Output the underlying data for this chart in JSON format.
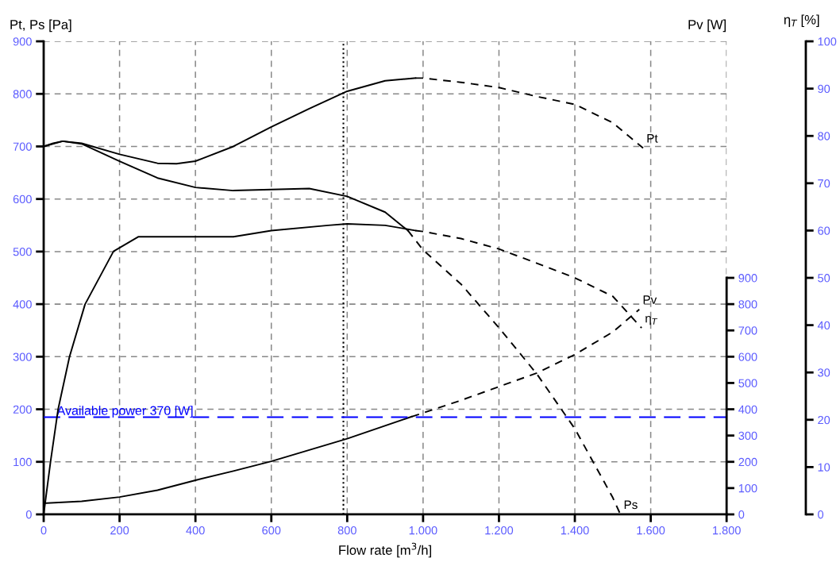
{
  "chart_data": {
    "type": "line",
    "xlabel": "Flow rate [m$^{3}$/h]",
    "ylabel": "Pt, Ps [Pa]",
    "y2label": "Pv [W]",
    "y3label": "η$_{T}$ [%]",
    "xlim": [
      0,
      1800
    ],
    "xticks": [
      0,
      200,
      400,
      600,
      800,
      {
        "value": 1000,
        "label": "1.000"
      },
      {
        "value": 1200,
        "label": "1.200"
      },
      {
        "value": 1400,
        "label": "1.400"
      },
      {
        "value": 1600,
        "label": "1.600"
      },
      {
        "value": 1800,
        "label": "1.800"
      }
    ],
    "ylim": [
      0,
      900
    ],
    "yticks": [
      0,
      100,
      200,
      300,
      400,
      500,
      600,
      700,
      800,
      900
    ],
    "y2lim": [
      0,
      1800
    ],
    "y2ticks": [
      0,
      100,
      200,
      300,
      400,
      500,
      600,
      700,
      800,
      900
    ],
    "y3lim": [
      0,
      100
    ],
    "y3ticks": [
      0,
      10,
      20,
      30,
      40,
      50,
      60,
      70,
      80,
      90,
      100
    ],
    "grid": true,
    "marker": "none",
    "series": [
      {
        "color": "#000000",
        "line_style": "solid",
        "x": [
          0,
          25,
          50,
          100,
          200,
          300,
          350,
          400,
          500,
          600,
          700,
          800,
          900,
          980
        ],
        "values": [
          700,
          706,
          710,
          706,
          685,
          668,
          667,
          672,
          700,
          737,
          772,
          805,
          825,
          830
        ]
      },
      {
        "name": "Pt",
        "color": "#000000",
        "line_style": "dashed",
        "x": [
          980,
          1000,
          1100,
          1200,
          1300,
          1400,
          1500,
          1580
        ],
        "values": [
          830,
          830,
          822,
          812,
          795,
          780,
          745,
          697
        ]
      },
      {
        "color": "#000000",
        "line_style": "solid",
        "x": [
          0,
          50,
          100,
          200,
          300,
          400,
          500,
          600,
          700,
          800,
          900,
          960
        ],
        "values": [
          700,
          710,
          705,
          672,
          640,
          622,
          616,
          618,
          620,
          605,
          575,
          540
        ]
      },
      {
        "name": "Ps",
        "color": "#000000",
        "line_style": "dashed",
        "x": [
          960,
          1000,
          1100,
          1200,
          1300,
          1400,
          1500,
          1520
        ],
        "values": [
          540,
          503,
          438,
          355,
          267,
          163,
          32,
          0
        ]
      },
      {
        "color": "#000000",
        "line_style": "solid",
        "axis": "y2",
        "x": [
          0,
          100,
          200,
          300,
          400,
          500,
          600,
          700,
          800,
          970
        ],
        "values": [
          42,
          50,
          66,
          92,
          130,
          165,
          202,
          245,
          288,
          372
        ]
      },
      {
        "name": "Pv",
        "color": "#000000",
        "line_style": "dashed",
        "axis": "y2",
        "x": [
          970,
          1000,
          1100,
          1200,
          1300,
          1400,
          1500,
          1570
        ],
        "values": [
          372,
          386,
          434,
          486,
          538,
          608,
          694,
          780
        ]
      },
      {
        "color": "#000000",
        "line_style": "solid",
        "axis": "y3",
        "x": [
          0,
          18,
          38,
          68,
          109,
          184,
          250,
          300,
          500,
          600,
          750,
          800,
          900,
          980
        ],
        "values": [
          0,
          11.1,
          22.2,
          33.3,
          44.4,
          55.6,
          58.7,
          58.7,
          58.7,
          60,
          61.1,
          61.4,
          61.1,
          60
        ]
      },
      {
        "name": "η$_{T}$",
        "color": "#000000",
        "line_style": "dashed",
        "axis": "y3",
        "x": [
          980,
          1000,
          1100,
          1200,
          1300,
          1400,
          1500,
          1576
        ],
        "values": [
          60,
          59.8,
          58.3,
          56.1,
          53.1,
          50,
          46.1,
          39.4
        ]
      }
    ],
    "ref_lines": [
      {
        "axis": "y2",
        "value": 370,
        "label": "Available power 370 [W]",
        "color": "#0000ff",
        "line_style": "dashed"
      },
      {
        "axis": "x",
        "value": 790,
        "color": "#000000",
        "line_style": "dotted"
      }
    ]
  }
}
